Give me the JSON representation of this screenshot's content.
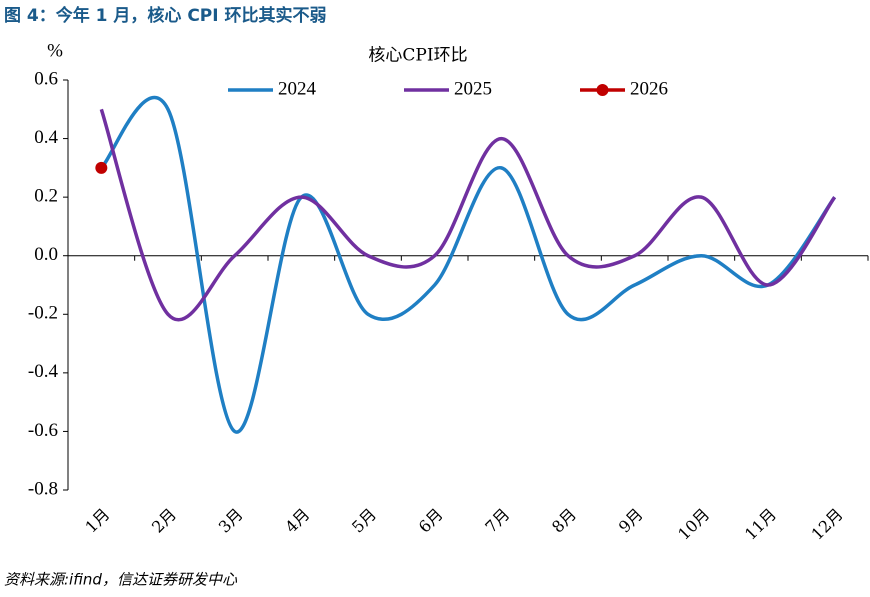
{
  "figure_title": "图 4：今年 1 月，核心 CPI 环比其实不弱",
  "source": "资料来源:ifind，信达证券研发中心",
  "chart_data": {
    "type": "line",
    "title": "核心CPI环比",
    "ylabel": "%",
    "categories": [
      "1月",
      "2月",
      "3月",
      "4月",
      "5月",
      "6月",
      "7月",
      "8月",
      "9月",
      "10月",
      "11月",
      "12月"
    ],
    "series": [
      {
        "name": "2024",
        "color": "#1f7fc4",
        "values": [
          0.3,
          0.5,
          -0.6,
          0.2,
          -0.2,
          -0.1,
          0.3,
          -0.2,
          -0.1,
          0.0,
          -0.1,
          0.2
        ]
      },
      {
        "name": "2025",
        "color": "#7030a0",
        "values": [
          0.5,
          -0.2,
          0.0,
          0.2,
          0.0,
          0.0,
          0.4,
          0.0,
          0.0,
          0.2,
          -0.1,
          0.2
        ]
      },
      {
        "name": "2026",
        "color": "#c00000",
        "marker": "circle",
        "values": [
          0.3,
          null,
          null,
          null,
          null,
          null,
          null,
          null,
          null,
          null,
          null,
          null
        ]
      }
    ],
    "ylim": [
      -0.8,
      0.6
    ],
    "yticks": [
      -0.8,
      -0.6,
      -0.4,
      -0.2,
      {
        "value": 0,
        "label": "0.0"
      },
      0.2,
      0.4,
      0.6
    ],
    "smooth": true,
    "grid": false,
    "legend": "top"
  }
}
